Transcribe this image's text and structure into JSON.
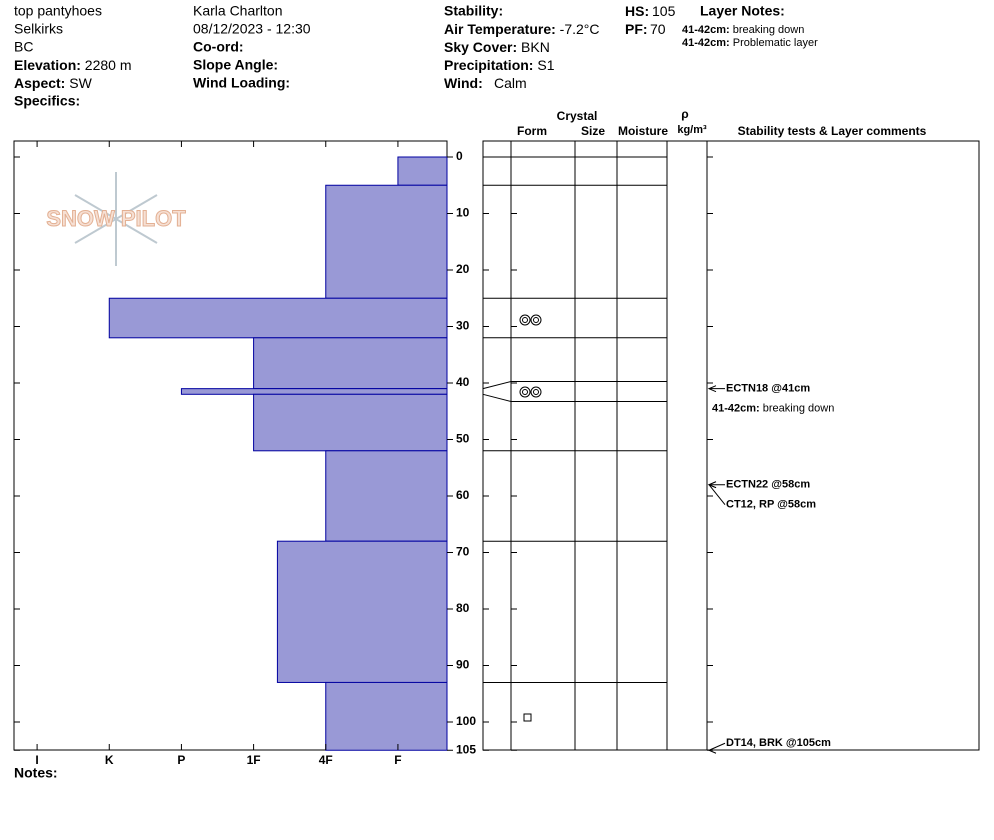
{
  "header": {
    "site": "top pantyhoes",
    "range": "Selkirks",
    "region": "BC",
    "elevation": {
      "label": "Elevation:",
      "value": "2280 m"
    },
    "aspect": {
      "label": "Aspect:",
      "value": "SW"
    },
    "specifics": {
      "label": "Specifics:"
    },
    "observer": "Karla Charlton",
    "datetime": "08/12/2023 - 12:30",
    "coord": {
      "label": "Co-ord:"
    },
    "slope_angle": {
      "label": "Slope Angle:"
    },
    "wind_loading": {
      "label": "Wind Loading:"
    },
    "stability": {
      "label": "Stability:"
    },
    "air_temperature": {
      "label": "Air Temperature:",
      "value": "-7.2°C"
    },
    "sky_cover": {
      "label": "Sky Cover:",
      "value": "BKN"
    },
    "precipitation": {
      "label": "Precipitation:",
      "value": "S1"
    },
    "wind": {
      "label": "Wind:",
      "value": "Calm"
    },
    "hs": {
      "label": "HS:",
      "value": "105"
    },
    "pf": {
      "label": "PF:",
      "value": "70"
    },
    "layer_notes": {
      "title": "Layer Notes:",
      "items": [
        {
          "label": "41-42cm:",
          "text": "breaking down"
        },
        {
          "label": "41-42cm:",
          "text": "Problematic layer"
        }
      ]
    }
  },
  "logo": "SNOW PILOT",
  "columns": {
    "crystal": "Crystal",
    "form": "Form",
    "size": "Size",
    "moisture": "Moisture",
    "rho": "ρ",
    "density_unit": "kg/m³",
    "comments": "Stability tests & Layer comments"
  },
  "notes": {
    "label": "Notes:"
  },
  "chart_data": {
    "type": "bar",
    "layers": [
      {
        "top": 0,
        "bottom": 5,
        "hardness": 1
      },
      {
        "top": 5,
        "bottom": 25,
        "hardness": 2
      },
      {
        "top": 25,
        "bottom": 32,
        "hardness": 5
      },
      {
        "top": 32,
        "bottom": 41,
        "hardness": 3
      },
      {
        "top": 41,
        "bottom": 42,
        "hardness": 4
      },
      {
        "top": 42,
        "bottom": 52,
        "hardness": 3
      },
      {
        "top": 52,
        "bottom": 68,
        "hardness": 2
      },
      {
        "top": 68,
        "bottom": 93,
        "hardness": 2.67
      },
      {
        "top": 93,
        "bottom": 105,
        "hardness": 2
      }
    ],
    "color": "#9999d6",
    "edge_color": "#0000a0",
    "ylim": [
      0,
      105
    ],
    "yticks": [
      0,
      10,
      20,
      30,
      40,
      50,
      60,
      70,
      80,
      90,
      100,
      105
    ],
    "xlim": [
      6.32,
      0.32
    ],
    "xticks": [
      {
        "value": 6,
        "label": "I"
      },
      {
        "value": 5,
        "label": "K"
      },
      {
        "value": 4,
        "label": "P"
      },
      {
        "value": 3,
        "label": "1F"
      },
      {
        "value": 2,
        "label": "4F"
      },
      {
        "value": 1,
        "label": "F"
      }
    ],
    "tests": [
      {
        "label": "ECTN18 @41cm",
        "depth": 41
      },
      {
        "label": "ECTN22 @58cm",
        "depth": 58
      },
      {
        "label": "CT12, RP @58cm",
        "depth": 58
      },
      {
        "label": "DT14, BRK @105cm",
        "depth": 105
      }
    ],
    "layer_comments": [
      {
        "label": "41-42cm:",
        "text": "breaking down",
        "depth": 42
      }
    ]
  }
}
